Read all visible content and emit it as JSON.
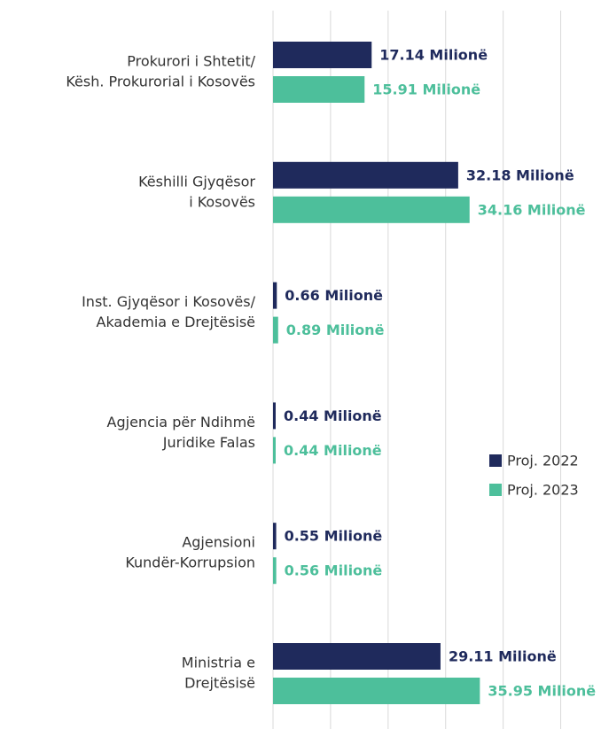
{
  "chart_data": {
    "type": "bar",
    "orientation": "horizontal",
    "categories": [
      [
        "Prokurori i Shtetit/",
        "Kësh. Prokurorial i Kosovës"
      ],
      [
        "Këshilli Gjyqësor",
        "i Kosovës"
      ],
      [
        "Inst. Gjyqësor i Kosovës/",
        "Akademia e Drejtësisë"
      ],
      [
        "Agjencia për Ndihmë",
        "Juridike Falas"
      ],
      [
        "Agjensioni",
        "Kundër-Korrupsion"
      ],
      [
        "Ministria e",
        "Drejtësisë"
      ]
    ],
    "series": [
      {
        "name": "Proj. 2022",
        "color": "#1f2a5c",
        "values": [
          17.14,
          32.18,
          0.66,
          0.44,
          0.55,
          29.11
        ],
        "value_labels": [
          "17.14 Milionë",
          "32.18 Milionë",
          "0.66 Milionë",
          "0.44 Milionë",
          "0.55 Milionë",
          "29.11 Milionë"
        ]
      },
      {
        "name": "Proj. 2023",
        "color": "#4dbf9b",
        "values": [
          15.91,
          34.16,
          0.89,
          0.44,
          0.56,
          35.95
        ],
        "value_labels": [
          "15.91 Milionë",
          "34.16 Milionë",
          "0.89 Milionë",
          "0.44 Milionë",
          "0.56 Milionë",
          "35.95 Milionë"
        ]
      }
    ],
    "xlim": [
      0,
      57
    ],
    "xticks": [
      0,
      10,
      20,
      30,
      40,
      50
    ],
    "grid": true,
    "legend": "right"
  }
}
